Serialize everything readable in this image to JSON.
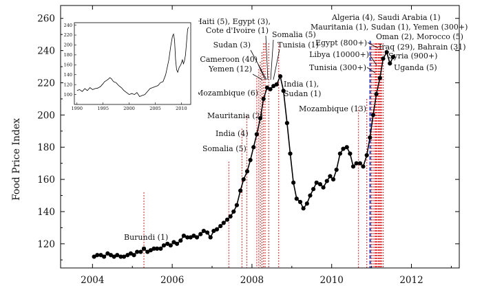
{
  "chart_data": [
    {
      "type": "line",
      "role": "main",
      "title": "",
      "xlabel": "",
      "ylabel": "Food Price Index",
      "xlim": [
        2003.2,
        2013.2
      ],
      "ylim": [
        105,
        268
      ],
      "xticks": [
        2004,
        2006,
        2008,
        2010,
        2012
      ],
      "xtick_labels": [
        "2004",
        "2006",
        "2008",
        "2010",
        "2012"
      ],
      "yticks": [
        120,
        140,
        160,
        180,
        200,
        220,
        240,
        260
      ],
      "ytick_labels": [
        "120",
        "140",
        "160",
        "180",
        "200",
        "220",
        "240",
        "260"
      ],
      "grid": false,
      "line_color": "#000000",
      "marker_color": "#000000",
      "event_line_color": "#e8393a",
      "highlight_line_color": "#1a3fd4",
      "series": [
        {
          "x": [
            2004.04,
            2004.12,
            2004.21,
            2004.29,
            2004.38,
            2004.46,
            2004.54,
            2004.62,
            2004.71,
            2004.79,
            2004.88,
            2004.96,
            2005.04,
            2005.12,
            2005.21,
            2005.29,
            2005.38,
            2005.46,
            2005.54,
            2005.62,
            2005.71,
            2005.79,
            2005.88,
            2005.96,
            2006.04,
            2006.12,
            2006.21,
            2006.29,
            2006.38,
            2006.46,
            2006.54,
            2006.62,
            2006.71,
            2006.79,
            2006.88,
            2006.96,
            2007.04,
            2007.12,
            2007.21,
            2007.29,
            2007.38,
            2007.46,
            2007.54,
            2007.62,
            2007.71,
            2007.79,
            2007.88,
            2007.96,
            2008.04,
            2008.12,
            2008.21,
            2008.29,
            2008.38,
            2008.46,
            2008.54,
            2008.62,
            2008.71,
            2008.79,
            2008.88,
            2008.96,
            2009.04,
            2009.12,
            2009.21,
            2009.29,
            2009.38,
            2009.46,
            2009.54,
            2009.62,
            2009.71,
            2009.79,
            2009.88,
            2009.96,
            2010.04,
            2010.12,
            2010.21,
            2010.29,
            2010.38,
            2010.46,
            2010.54,
            2010.62,
            2010.71,
            2010.79,
            2010.88,
            2010.96,
            2011.04,
            2011.12,
            2011.21,
            2011.29,
            2011.38,
            2011.46,
            2011.54
          ],
          "y": [
            112,
            113,
            113,
            112,
            114,
            113,
            112,
            113,
            112,
            112,
            113,
            114,
            113,
            115,
            115,
            117,
            115,
            116,
            117,
            117,
            117,
            119,
            120,
            119,
            121,
            120,
            122,
            125,
            124,
            124,
            125,
            124,
            126,
            128,
            127,
            124,
            128,
            129,
            131,
            133,
            135,
            137,
            140,
            144,
            153,
            160,
            165,
            172,
            180,
            188,
            198,
            210,
            217,
            216,
            218,
            219,
            224,
            215,
            195,
            176,
            158,
            148,
            146,
            142,
            145,
            150,
            154,
            158,
            157,
            155,
            159,
            162,
            160,
            166,
            176,
            179,
            180,
            176,
            168,
            170,
            170,
            168,
            175,
            186,
            200,
            213,
            223,
            235,
            239,
            232,
            236
          ]
        }
      ],
      "event_lines": [
        2005.29,
        2007.42,
        2007.75,
        2007.87,
        2008.12,
        2008.17,
        2008.21,
        2008.25,
        2008.29,
        2008.33,
        2008.42,
        2008.67,
        2010.67,
        2010.88,
        2010.96,
        2011.0,
        2011.04,
        2011.08,
        2011.1,
        2011.12,
        2011.14,
        2011.17,
        2011.19,
        2011.21,
        2011.23,
        2011.25,
        2011.29
      ],
      "highlight_lines": [
        2011.0
      ],
      "annotations": [
        {
          "text": "Burundi (1)",
          "x": 2005.29
        },
        {
          "text": "Somalia (5)",
          "x": 2007.42
        },
        {
          "text": "India (4)",
          "x": 2007.75
        },
        {
          "text": "Mauritania (2)",
          "x": 2007.87
        },
        {
          "text": "Mozambique (6)",
          "x": 2008.12
        },
        {
          "text": "Yemen (12)",
          "x": 2008.17
        },
        {
          "text": "Cameroon (40)",
          "x": 2008.21
        },
        {
          "text": "Sudan (3)",
          "x": 2008.25
        },
        {
          "text": "Cote d'Ivoire (1)",
          "x": 2008.29
        },
        {
          "text": "Haiti (5), Egypt (3),",
          "x": 2008.29
        },
        {
          "text": "Somalia (5)",
          "x": 2008.33
        },
        {
          "text": "Tunisia (1)",
          "x": 2008.42
        },
        {
          "text": "India (1),",
          "x": 2008.67
        },
        {
          "text": "Sudan (1)",
          "x": 2008.67
        },
        {
          "text": "Mozambique (13)",
          "x": 2010.67
        },
        {
          "text": "Tunisia (300+)",
          "x": 2010.96
        },
        {
          "text": "Libya (10000+)",
          "x": 2011.0
        },
        {
          "text": "Egypt (800+)",
          "x": 2011.04
        },
        {
          "text": "Algeria (4), Saudi Arabia (1)",
          "x": 2011.08
        },
        {
          "text": "Mauritania (1), Sudan (1), Yemen (300+)",
          "x": 2011.1
        },
        {
          "text": "Oman (2), Morocco (5)",
          "x": 2011.14
        },
        {
          "text": "Iraq (29), Bahrain (31)",
          "x": 2011.17
        },
        {
          "text": "Syria (900+)",
          "x": 2011.21
        },
        {
          "text": "Uganda (5)",
          "x": 2011.29
        }
      ]
    },
    {
      "type": "line",
      "role": "inset",
      "xlim": [
        1989.5,
        2011.8
      ],
      "ylim": [
        80,
        245
      ],
      "xticks": [
        1990,
        1995,
        2000,
        2005,
        2010
      ],
      "xtick_labels": [
        "1990",
        "1995",
        "2000",
        "2005",
        "2010"
      ],
      "yticks": [
        100,
        120,
        140,
        160,
        180,
        200,
        220,
        240
      ],
      "ytick_labels": [
        "100",
        "120",
        "140",
        "160",
        "180",
        "200",
        "220",
        "240"
      ],
      "series": [
        {
          "x": [
            1990.0,
            1990.5,
            1991.0,
            1991.5,
            1992.0,
            1992.5,
            1993.0,
            1993.5,
            1994.0,
            1994.5,
            1995.0,
            1995.3,
            1995.6,
            1996.0,
            1996.3,
            1996.6,
            1997.0,
            1997.5,
            1998.0,
            1998.5,
            1999.0,
            1999.5,
            2000.0,
            2000.5,
            2001.0,
            2001.5,
            2002.0,
            2002.5,
            2003.0,
            2003.5,
            2004.0,
            2004.5,
            2005.0,
            2005.5,
            2006.0,
            2006.5,
            2007.0,
            2007.3,
            2007.6,
            2008.0,
            2008.3,
            2008.5,
            2008.7,
            2008.9,
            2009.1,
            2009.3,
            2009.6,
            2009.9,
            2010.2,
            2010.4,
            2010.6,
            2010.8,
            2011.0,
            2011.2,
            2011.4
          ],
          "y": [
            108,
            110,
            106,
            112,
            108,
            114,
            110,
            112,
            113,
            116,
            122,
            126,
            128,
            131,
            134,
            132,
            126,
            124,
            118,
            114,
            108,
            104,
            100,
            102,
            100,
            104,
            96,
            98,
            100,
            106,
            112,
            114,
            116,
            118,
            124,
            126,
            140,
            155,
            170,
            200,
            218,
            222,
            210,
            170,
            150,
            145,
            155,
            160,
            170,
            162,
            168,
            180,
            205,
            232,
            236
          ]
        }
      ]
    }
  ]
}
